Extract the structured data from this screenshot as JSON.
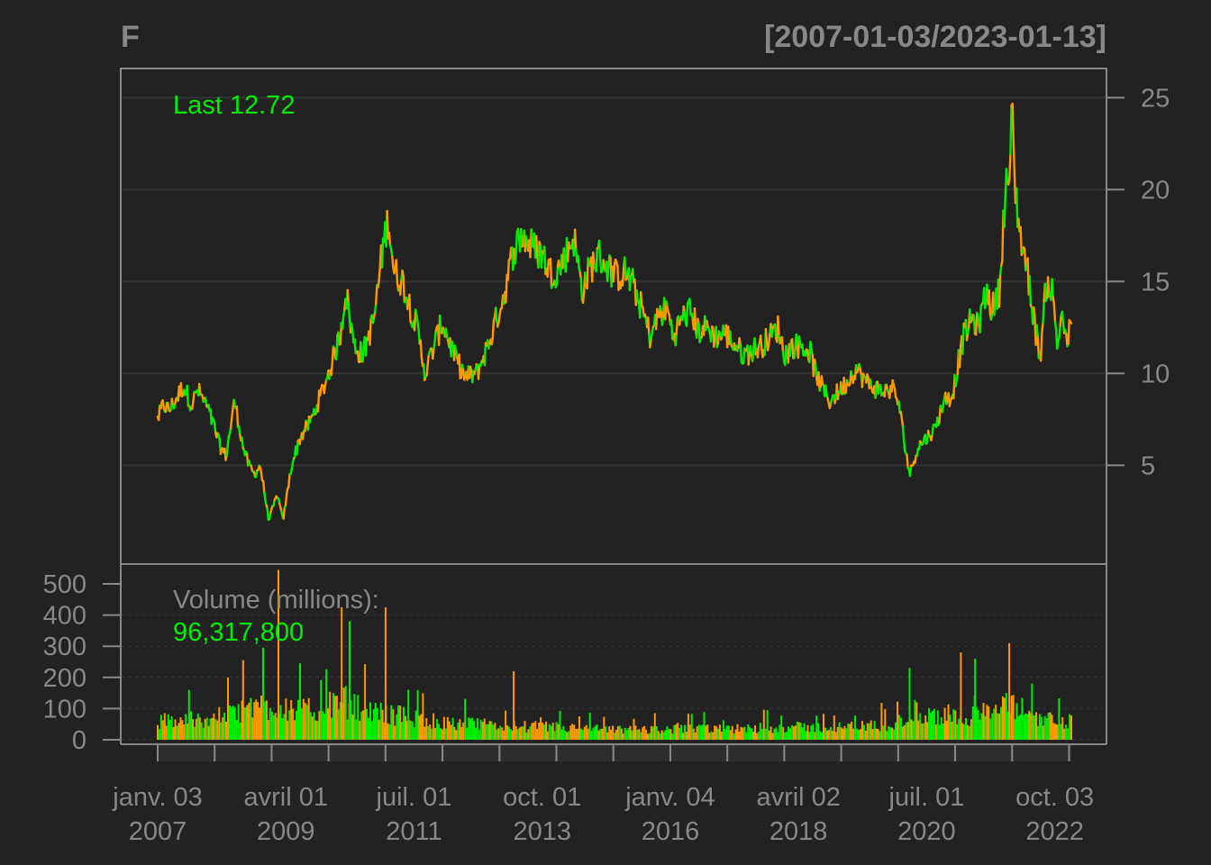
{
  "chart_data": {
    "type": "line",
    "title": "F",
    "date_range": "[2007-01-03/2023-01-13]",
    "last_label": "Last 12.72",
    "volume_label": "Volume (millions):",
    "volume_value": "96,317,800",
    "price_axis": {
      "ticks": [
        "5",
        "10",
        "15",
        "20",
        "25"
      ],
      "range": [
        0,
        26.5
      ]
    },
    "volume_axis": {
      "ticks": [
        "0",
        "100",
        "200",
        "300",
        "400",
        "500"
      ],
      "range": [
        0,
        560
      ]
    },
    "x_ticks": [
      {
        "top": "janv. 03",
        "bottom": "2007",
        "t": 2007.0
      },
      {
        "top": "avril 01",
        "bottom": "2009",
        "t": 2009.25
      },
      {
        "top": "juil. 01",
        "bottom": "2011",
        "t": 2011.5
      },
      {
        "top": "oct. 01",
        "bottom": "2013",
        "t": 2013.75
      },
      {
        "top": "janv. 04",
        "bottom": "2016",
        "t": 2016.0
      },
      {
        "top": "avril 02",
        "bottom": "2018",
        "t": 2018.25
      },
      {
        "top": "juil. 01",
        "bottom": "2020",
        "t": 2020.5
      },
      {
        "top": "oct. 03",
        "bottom": "2022",
        "t": 2022.75
      }
    ],
    "x_range": [
      2007.0,
      2023.04
    ],
    "colors": {
      "up": "#00ee00",
      "down": "#ff9900",
      "background": "#222222",
      "axis": "#888888",
      "grid": "#333333"
    },
    "price_series": [
      [
        2007.0,
        7.5
      ],
      [
        2007.1,
        8.3
      ],
      [
        2007.2,
        8.0
      ],
      [
        2007.3,
        8.5
      ],
      [
        2007.45,
        9.3
      ],
      [
        2007.6,
        8.3
      ],
      [
        2007.7,
        9.1
      ],
      [
        2007.85,
        8.3
      ],
      [
        2008.0,
        7.0
      ],
      [
        2008.1,
        6.0
      ],
      [
        2008.2,
        5.5
      ],
      [
        2008.35,
        8.5
      ],
      [
        2008.5,
        6.0
      ],
      [
        2008.6,
        5.0
      ],
      [
        2008.7,
        4.5
      ],
      [
        2008.8,
        5.0
      ],
      [
        2008.9,
        3.0
      ],
      [
        2008.95,
        2.0
      ],
      [
        2009.0,
        2.5
      ],
      [
        2009.1,
        3.4
      ],
      [
        2009.2,
        2.0
      ],
      [
        2009.35,
        5.0
      ],
      [
        2009.5,
        6.5
      ],
      [
        2009.7,
        7.5
      ],
      [
        2009.85,
        8.7
      ],
      [
        2010.0,
        10.0
      ],
      [
        2010.2,
        12.0
      ],
      [
        2010.3,
        14.5
      ],
      [
        2010.45,
        11.5
      ],
      [
        2010.6,
        11.0
      ],
      [
        2010.8,
        13.0
      ],
      [
        2010.95,
        16.8
      ],
      [
        2011.05,
        18.5
      ],
      [
        2011.15,
        15.5
      ],
      [
        2011.3,
        15.0
      ],
      [
        2011.4,
        14.0
      ],
      [
        2011.55,
        12.5
      ],
      [
        2011.7,
        10.0
      ],
      [
        2011.85,
        11.5
      ],
      [
        2012.0,
        12.8
      ],
      [
        2012.2,
        11.0
      ],
      [
        2012.4,
        9.8
      ],
      [
        2012.6,
        10.0
      ],
      [
        2012.8,
        11.5
      ],
      [
        2012.95,
        13.0
      ],
      [
        2013.1,
        14.5
      ],
      [
        2013.25,
        16.8
      ],
      [
        2013.4,
        17.5
      ],
      [
        2013.6,
        16.8
      ],
      [
        2013.75,
        16.5
      ],
      [
        2013.9,
        15.5
      ],
      [
        2014.05,
        15.7
      ],
      [
        2014.2,
        16.7
      ],
      [
        2014.3,
        17.5
      ],
      [
        2014.45,
        14.5
      ],
      [
        2014.6,
        15.8
      ],
      [
        2014.75,
        16.4
      ],
      [
        2014.9,
        15.8
      ],
      [
        2015.05,
        15.3
      ],
      [
        2015.2,
        15.5
      ],
      [
        2015.35,
        14.8
      ],
      [
        2015.5,
        13.5
      ],
      [
        2015.65,
        12.0
      ],
      [
        2015.8,
        13.2
      ],
      [
        2015.95,
        13.5
      ],
      [
        2016.05,
        12.0
      ],
      [
        2016.2,
        13.0
      ],
      [
        2016.35,
        13.4
      ],
      [
        2016.5,
        12.3
      ],
      [
        2016.65,
        12.5
      ],
      [
        2016.8,
        12.0
      ],
      [
        2016.95,
        12.2
      ],
      [
        2017.15,
        11.5
      ],
      [
        2017.3,
        11.0
      ],
      [
        2017.45,
        11.3
      ],
      [
        2017.6,
        11.5
      ],
      [
        2017.75,
        12.0
      ],
      [
        2017.9,
        12.5
      ],
      [
        2018.0,
        11.0
      ],
      [
        2018.15,
        11.5
      ],
      [
        2018.3,
        11.5
      ],
      [
        2018.45,
        11.2
      ],
      [
        2018.55,
        10.0
      ],
      [
        2018.7,
        9.0
      ],
      [
        2018.8,
        8.5
      ],
      [
        2018.95,
        9.0
      ],
      [
        2019.1,
        9.5
      ],
      [
        2019.25,
        10.3
      ],
      [
        2019.45,
        9.5
      ],
      [
        2019.6,
        9.2
      ],
      [
        2019.75,
        9.0
      ],
      [
        2019.9,
        9.2
      ],
      [
        2020.0,
        8.5
      ],
      [
        2020.1,
        6.5
      ],
      [
        2020.2,
        4.5
      ],
      [
        2020.35,
        6.0
      ],
      [
        2020.5,
        6.5
      ],
      [
        2020.65,
        7.0
      ],
      [
        2020.8,
        8.5
      ],
      [
        2020.95,
        8.8
      ],
      [
        2021.05,
        10.5
      ],
      [
        2021.15,
        12.0
      ],
      [
        2021.3,
        13.0
      ],
      [
        2021.4,
        12.5
      ],
      [
        2021.55,
        14.5
      ],
      [
        2021.65,
        13.5
      ],
      [
        2021.78,
        14.5
      ],
      [
        2021.88,
        20.0
      ],
      [
        2021.97,
        21.0
      ],
      [
        2022.0,
        24.8
      ],
      [
        2022.05,
        20.0
      ],
      [
        2022.15,
        17.5
      ],
      [
        2022.3,
        15.0
      ],
      [
        2022.4,
        12.5
      ],
      [
        2022.5,
        11.0
      ],
      [
        2022.6,
        15.0
      ],
      [
        2022.7,
        14.5
      ],
      [
        2022.8,
        11.5
      ],
      [
        2022.88,
        13.5
      ],
      [
        2022.95,
        11.5
      ],
      [
        2023.0,
        12.2
      ],
      [
        2023.04,
        12.72
      ]
    ],
    "volume_series": [
      [
        2007.0,
        60
      ],
      [
        2007.5,
        65
      ],
      [
        2008.0,
        70
      ],
      [
        2008.5,
        90
      ],
      [
        2008.8,
        120
      ],
      [
        2009.0,
        110
      ],
      [
        2009.3,
        105
      ],
      [
        2009.6,
        90
      ],
      [
        2010.0,
        110
      ],
      [
        2010.3,
        120
      ],
      [
        2010.6,
        95
      ],
      [
        2011.0,
        85
      ],
      [
        2011.5,
        70
      ],
      [
        2012.0,
        55
      ],
      [
        2012.5,
        50
      ],
      [
        2013.0,
        45
      ],
      [
        2014.0,
        40
      ],
      [
        2015.0,
        32
      ],
      [
        2016.0,
        35
      ],
      [
        2017.0,
        34
      ],
      [
        2018.0,
        40
      ],
      [
        2019.0,
        40
      ],
      [
        2020.0,
        50
      ],
      [
        2020.3,
        90
      ],
      [
        2020.6,
        70
      ],
      [
        2021.0,
        75
      ],
      [
        2021.6,
        85
      ],
      [
        2022.0,
        110
      ],
      [
        2022.5,
        70
      ],
      [
        2023.0,
        60
      ],
      [
        2023.04,
        60
      ]
    ],
    "volume_spikes": [
      [
        2007.55,
        160
      ],
      [
        2008.5,
        255
      ],
      [
        2008.85,
        295
      ],
      [
        2009.12,
        545
      ],
      [
        2009.5,
        245
      ],
      [
        2010.23,
        425
      ],
      [
        2010.37,
        380
      ],
      [
        2011.0,
        425
      ],
      [
        2011.4,
        160
      ],
      [
        2013.25,
        220
      ],
      [
        2020.2,
        230
      ],
      [
        2021.1,
        280
      ],
      [
        2021.35,
        260
      ],
      [
        2021.95,
        310
      ],
      [
        2022.35,
        180
      ]
    ]
  }
}
